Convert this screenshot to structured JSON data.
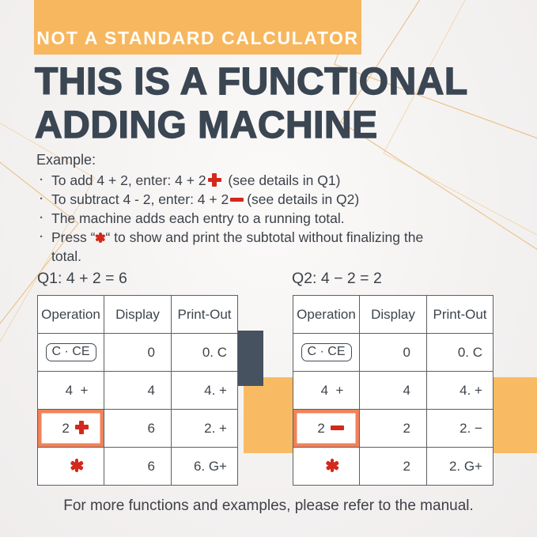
{
  "banner": {
    "label": "NOT A STANDARD CALCULATOR"
  },
  "title": {
    "line1": "THIS IS A FUNCTIONAL",
    "line2": "ADDING MACHINE"
  },
  "example": {
    "heading": "Example:",
    "marker": "·",
    "b1_pre": "To add 4 + 2, enter: 4 + 2",
    "b1_post": " (see details in Q1)",
    "b2_pre": "To subtract 4 - 2, enter: 4 + 2",
    "b2_post": "(see details in Q2)",
    "b3": "The machine adds each entry to a running total.",
    "b4_pre": "Press “",
    "b4_post": "“ to show and print the subtotal without finalizing the total."
  },
  "q1": {
    "heading": "Q1: 4 + 2 = 6",
    "col_operation": "Operation",
    "col_display": "Display",
    "col_printout": "Print-Out",
    "r1_op": "C · CE",
    "r1_display": "0",
    "r1_printout": "0. C",
    "r2_op": "4  +",
    "r2_display": "4",
    "r2_printout": "4. +",
    "r3_op": "2 ",
    "r3_display": "6",
    "r3_printout": "2. +",
    "r4_display": "6",
    "r4_printout": "6. G+"
  },
  "q2": {
    "heading": "Q2: 4 − 2 = 2",
    "col_operation": "Operation",
    "col_display": "Display",
    "col_printout": "Print-Out",
    "r1_op": "C · CE",
    "r1_display": "0",
    "r1_printout": "0. C",
    "r2_op": "4  +",
    "r2_display": "4",
    "r2_printout": "4. +",
    "r3_op": "2 ",
    "r3_display": "2",
    "r3_printout": "2. −",
    "r4_display": "2",
    "r4_printout": "2. G+"
  },
  "footer": {
    "note": "For more functions and examples, please refer to the manual."
  },
  "icons": {
    "plus": "heavy-plus-cross",
    "minus": "heavy-minus-bar",
    "asterisk": "heavy-six-spoke-asterisk"
  },
  "colors": {
    "accent_orange": "#f7b75f",
    "band_orange": "#f8bb63",
    "slate_block": "#475260",
    "title_text": "#3b4653",
    "body_text": "#3c424a",
    "red_icon": "#d2291c",
    "highlight_border": "#f0825a",
    "table_border": "#5d5f63"
  }
}
